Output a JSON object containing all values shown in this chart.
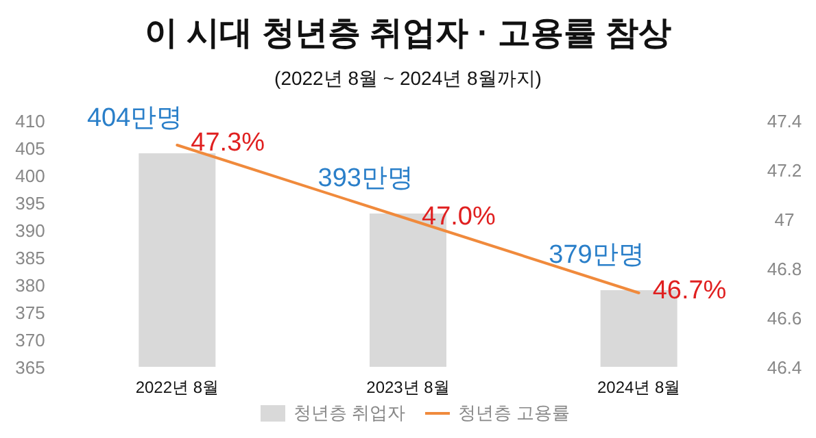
{
  "chart_data": {
    "type": "bar",
    "title": "이 시대 청년층 취업자 · 고용률 참상",
    "subtitle": "(2022년 8월 ~ 2024년 8월까지)",
    "categories": [
      "2022년 8월",
      "2023년 8월",
      "2024년 8월"
    ],
    "series": [
      {
        "name": "청년층 취업자",
        "color": "#d9d9d9",
        "values": [
          404,
          393,
          379
        ],
        "value_labels": [
          "404만명",
          "393만명",
          "379만명"
        ]
      },
      {
        "name": "청년층 고용률",
        "type": "line",
        "axis": "y2",
        "color": "#f08a3c",
        "values": [
          47.3,
          47.0,
          46.7
        ],
        "value_labels": [
          "47.3%",
          "47.0%",
          "46.7%"
        ]
      }
    ],
    "ylim": [
      365,
      410
    ],
    "yticks": [
      365,
      370,
      375,
      380,
      385,
      390,
      395,
      400,
      405,
      410
    ],
    "y2lim": [
      46.4,
      47.4
    ],
    "y2ticks": [
      46.4,
      46.6,
      46.8,
      47,
      47.2,
      47.4
    ],
    "legend": "bottom",
    "grid": false
  }
}
